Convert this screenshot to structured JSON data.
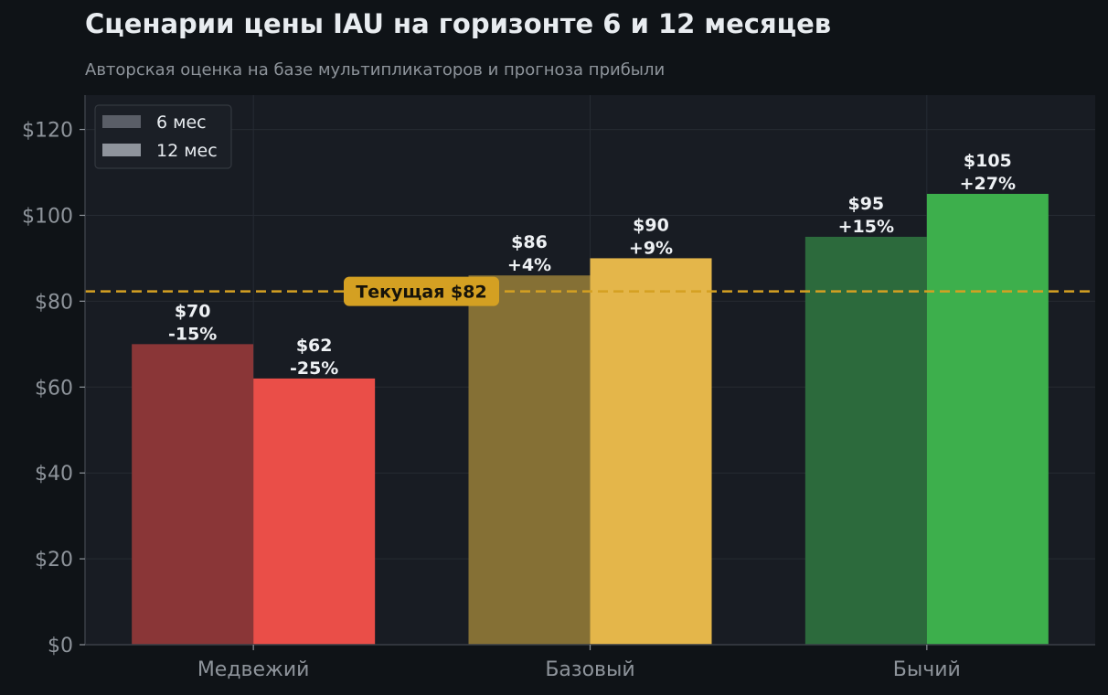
{
  "chart_title": "Сценарии цены IAU на горизонте 6 и 12 месяцев",
  "chart_subtitle": "Авторская оценка на базе мультипликаторов и прогноза прибыли",
  "colors": {
    "page_background": "#0f1317",
    "plot_background": "#181c23",
    "grid": "#262b33",
    "reference_line": "#d4a022"
  },
  "chart_data": {
    "type": "bar",
    "categories": [
      "Медвежий",
      "Базовый",
      "Бычий"
    ],
    "series": [
      {
        "name": "6 мес",
        "values": [
          70,
          86,
          95
        ],
        "labels": [
          "$70\n-15%",
          "$86\n+4%",
          "$95\n+15%"
        ],
        "colors": [
          "#8a3637",
          "#857035",
          "#2c6a3c"
        ],
        "legend_color": "#5a5e67"
      },
      {
        "name": "12 мес",
        "values": [
          62,
          90,
          105
        ],
        "labels": [
          "$62\n-25%",
          "$90\n+9%",
          "$105\n+27%"
        ],
        "colors": [
          "#ea4e48",
          "#e4b64a",
          "#3daf4c"
        ],
        "legend_color": "#8f949c"
      }
    ],
    "ylim": [
      0,
      128
    ],
    "yticks": [
      0,
      20,
      40,
      60,
      80,
      100,
      120
    ],
    "ytick_labels": [
      "$0",
      "$20",
      "$40",
      "$60",
      "$80",
      "$100",
      "$120"
    ],
    "xlabel": "",
    "ylabel": "",
    "grid": true,
    "legend_position": "top-left",
    "reference_line": {
      "value": 82.3,
      "label": "Текущая $82"
    }
  }
}
